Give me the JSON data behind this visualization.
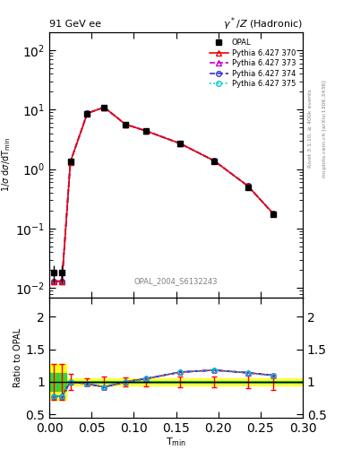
{
  "title_left": "91 GeV ee",
  "title_right": "γ*/Z (Hadronic)",
  "ylabel_main": "1/σ dσ/dT_min",
  "ylabel_ratio": "Ratio to OPAL",
  "xlabel": "T_min",
  "watermark": "OPAL_2004_S6132243",
  "right_label": "Rivet 3.1.10, ≥ 400k events",
  "right_label2": "mcplots.cern.ch [arXiv:1306.3436]",
  "opal_x": [
    0.005,
    0.015,
    0.025,
    0.045,
    0.065,
    0.09,
    0.115,
    0.155,
    0.195,
    0.235,
    0.265
  ],
  "opal_y": [
    0.018,
    0.018,
    1.35,
    8.6,
    10.8,
    5.6,
    4.3,
    2.65,
    1.35,
    0.5,
    0.175
  ],
  "opal_yerr": [
    0.006,
    0.006,
    0.15,
    0.5,
    0.8,
    0.4,
    0.3,
    0.2,
    0.12,
    0.05,
    0.02
  ],
  "py_x": [
    0.005,
    0.015,
    0.025,
    0.045,
    0.065,
    0.09,
    0.115,
    0.155,
    0.195,
    0.235,
    0.265
  ],
  "py370_y": [
    0.013,
    0.013,
    1.32,
    8.65,
    10.9,
    5.65,
    4.35,
    2.68,
    1.38,
    0.52,
    0.178
  ],
  "py373_y": [
    0.013,
    0.013,
    1.32,
    8.65,
    10.9,
    5.65,
    4.35,
    2.68,
    1.38,
    0.52,
    0.178
  ],
  "py374_y": [
    0.013,
    0.013,
    1.32,
    8.65,
    10.9,
    5.65,
    4.35,
    2.68,
    1.38,
    0.52,
    0.178
  ],
  "py375_y": [
    0.013,
    0.013,
    1.32,
    8.65,
    10.9,
    5.65,
    4.35,
    2.68,
    1.38,
    0.52,
    0.178
  ],
  "ratio_x": [
    0.005,
    0.015,
    0.025,
    0.045,
    0.065,
    0.09,
    0.115,
    0.155,
    0.195,
    0.235,
    0.265
  ],
  "ratio_opal_yerr": [
    0.28,
    0.28,
    0.12,
    0.06,
    0.08,
    0.07,
    0.07,
    0.08,
    0.08,
    0.1,
    0.12
  ],
  "ratio_y": [
    0.78,
    0.78,
    1.0,
    0.97,
    0.92,
    1.0,
    1.05,
    1.15,
    1.18,
    1.14,
    1.1
  ],
  "color_370": "#e8050a",
  "color_373": "#cc00cc",
  "color_374": "#3333cc",
  "color_375": "#00cccc",
  "color_opal": "#000000",
  "ylim_main": [
    0.007,
    200
  ],
  "ylim_ratio": [
    0.45,
    2.3
  ],
  "xlim": [
    0.0,
    0.3
  ],
  "yticks_ratio": [
    0.5,
    1.0,
    1.5,
    2.0
  ],
  "ytick_labels_ratio": [
    "0.5",
    "1",
    "1.5",
    "2"
  ]
}
